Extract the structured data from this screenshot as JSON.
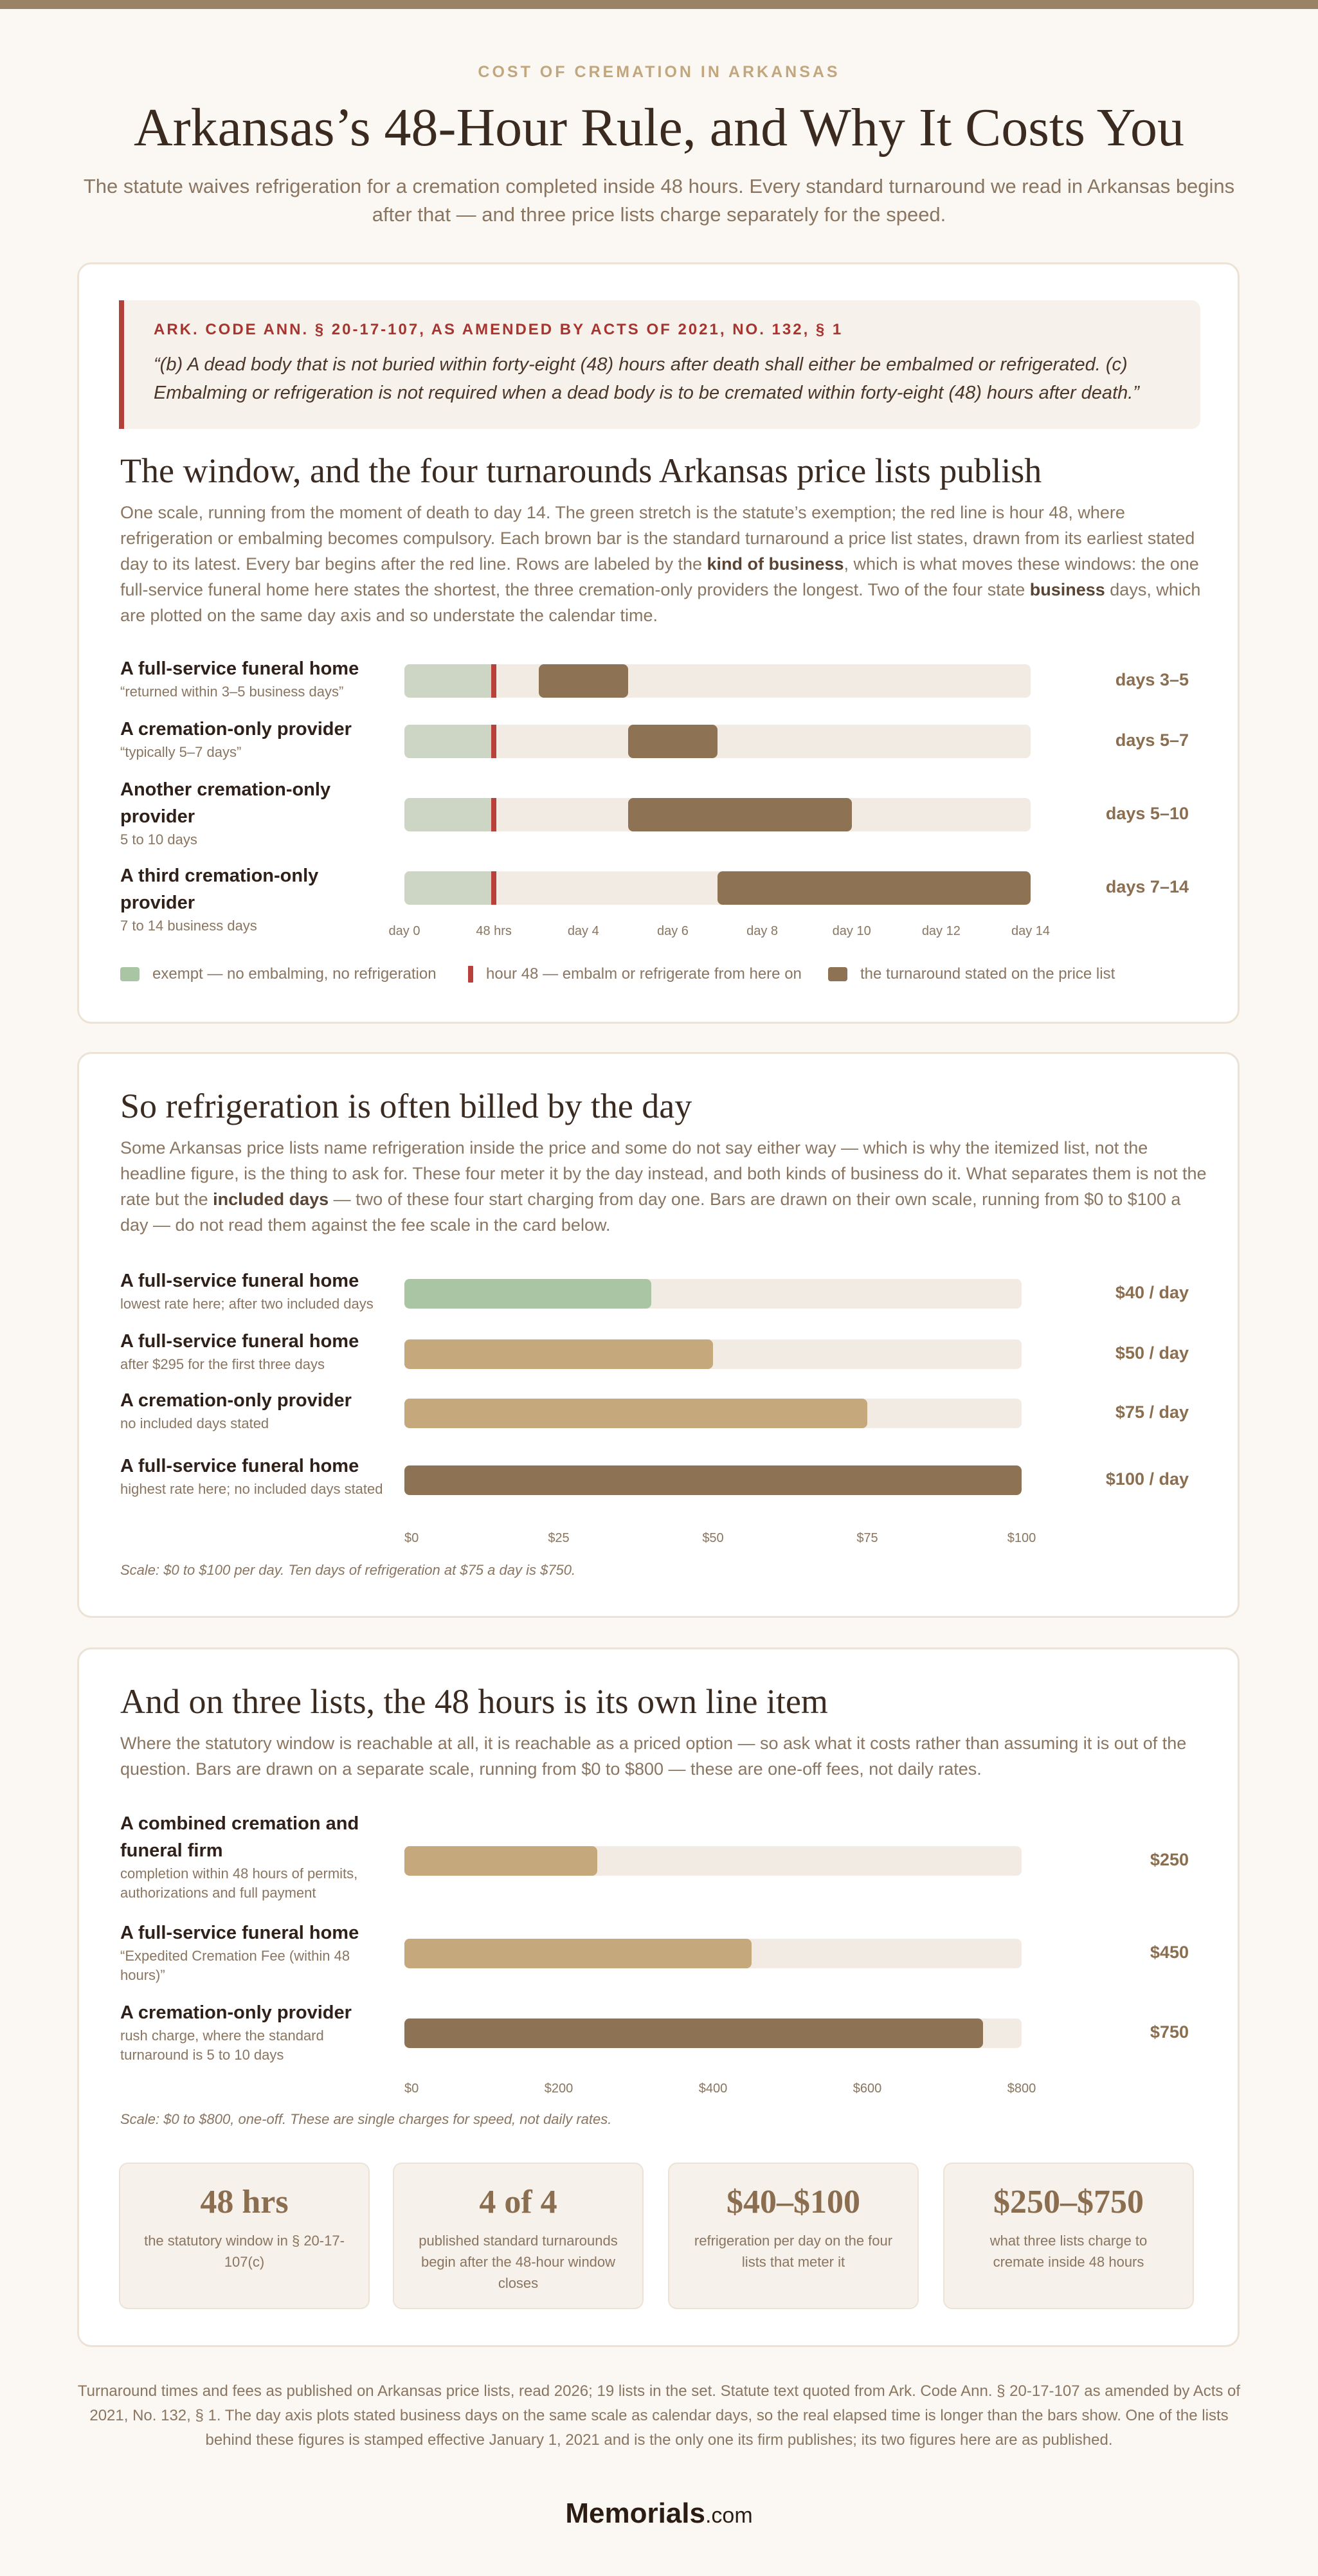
{
  "header": {
    "eyebrow": "COST OF CREMATION IN ARKANSAS",
    "title": "Arkansas’s 48-Hour Rule, and Why It Costs You",
    "subtitle": "The statute waives refrigeration for a cremation completed inside 48 hours. Every standard turnaround we read in Arkansas begins after that — and three price lists charge separately for the speed."
  },
  "statute": {
    "cite": "ARK. CODE ANN. § 20-17-107, AS AMENDED BY ACTS OF 2021, NO. 132, § 1",
    "text": "“(b) A dead body that is not buried within forty-eight (48) hours after death shall either be embalmed or refrigerated. (c) Embalming or refrigeration is not required when a dead body is to be cremated within forty-eight (48) hours after death.”"
  },
  "section1": {
    "heading": "The window, and the four turnarounds Arkansas price lists publish",
    "body_html": "One scale, running from the moment of death to day 14. The green stretch is the statute’s exemption; the red line is hour 48, where refrigeration or embalming becomes compulsory. Each brown bar is the standard turnaround a price list states, drawn from its earliest stated day to its latest. Every bar begins after the red line. Rows are labeled by the <b>kind of business</b>, which is what moves these windows: the one full-service funeral home here states the shortest, the three cremation-only providers the longest. Two of the four state <b>business</b> days, which are plotted on the same day axis and so understate the calendar time."
  },
  "legend": {
    "exempt": "exempt — no embalming, no refrigeration",
    "hour48": "hour 48 — embalm or refrigerate from here on",
    "turnaround": "the turnaround stated on the price list"
  },
  "section2": {
    "heading": "So refrigeration is often billed by the day",
    "body_html": "Some Arkansas price lists name refrigeration inside the price and some do not say either way — which is why the itemized list, not the headline figure, is the thing to ask for. These four meter it by the day instead, and both kinds of business do it. What separates them is not the rate but the <b>included days</b> — two of these four start charging from day one. Bars are drawn on their own scale, running from $0 to $100 a day — do not read them against the fee scale in the card below.",
    "note": "Scale: $0 to $100 per day. Ten days of refrigeration at $75 a day is $750."
  },
  "section3": {
    "heading": "And on three lists, the 48 hours is its own line item",
    "body": "Where the statutory window is reachable at all, it is reachable as a priced option — so ask what it costs rather than assuming it is out of the question. Bars are drawn on a separate scale, running from $0 to $800 — these are one-off fees, not daily rates.",
    "note": "Scale: $0 to $800, one-off. These are single charges for speed, not daily rates."
  },
  "stats": [
    {
      "big": "48 hrs",
      "label": "the statutory window in § 20-17-107(c)"
    },
    {
      "big": "4 of 4",
      "label": "published standard turnarounds begin after the 48-hour window closes"
    },
    {
      "big": "$40–$100",
      "label": "refrigeration per day on the four lists that meter it"
    },
    {
      "big": "$250–$750",
      "label": "what three lists charge to cremate inside 48 hours"
    }
  ],
  "footer": "Turnaround times and fees as published on Arkansas price lists, read 2026; 19 lists in the set. Statute text quoted from Ark. Code Ann. § 20-17-107 as amended by Acts of 2021, No. 132, § 1. The day axis plots stated business days on the same scale as calendar days, so the real elapsed time is longer than the bars show. One of the lists behind these figures is stamped effective January 1, 2021 and is the only one its firm publishes; its two figures here are as published.",
  "brand": {
    "name": "Memorials",
    "suffix": ".com"
  },
  "colors": {
    "exempt": "#cdd5c4",
    "hour48": "#b8423b",
    "turnaround": "#8e7254",
    "track": "#f1ebe4",
    "rate_low": "#a9c5a3",
    "rate_mid": "#c6a87d",
    "rate_high": "#8e7254"
  },
  "chart_data": [
    {
      "type": "bar",
      "orientation": "horizontal-range",
      "xlim": [
        0,
        14
      ],
      "x_ticks": [
        "day 0",
        "48 hrs",
        "day 4",
        "day 6",
        "day 8",
        "day 10",
        "day 12",
        "day 14"
      ],
      "exempt_range": [
        0,
        2
      ],
      "marker": 2,
      "series": [
        {
          "label": "A full-service funeral home",
          "sub": "“returned within 3–5 business days”",
          "start": 3,
          "end": 5,
          "value_label": "days 3–5"
        },
        {
          "label": "A cremation-only provider",
          "sub": "“typically 5–7 days”",
          "start": 5,
          "end": 7,
          "value_label": "days 5–7"
        },
        {
          "label": "Another cremation-only provider",
          "sub": "5 to 10 days",
          "start": 5,
          "end": 10,
          "value_label": "days 5–10"
        },
        {
          "label": "A third cremation-only provider",
          "sub": "7 to 14 business days",
          "start": 7,
          "end": 14,
          "value_label": "days 7–14"
        }
      ]
    },
    {
      "type": "bar",
      "orientation": "horizontal",
      "xlim": [
        0,
        100
      ],
      "x_ticks": [
        "$0",
        "$25",
        "$50",
        "$75",
        "$100"
      ],
      "series": [
        {
          "label": "A full-service funeral home",
          "sub": "lowest rate here; after two included days",
          "value": 40,
          "value_label": "$40 / day",
          "color": "rate_low"
        },
        {
          "label": "A full-service funeral home",
          "sub": "after $295 for the first three days",
          "value": 50,
          "value_label": "$50 / day",
          "color": "rate_mid"
        },
        {
          "label": "A cremation-only provider",
          "sub": "no included days stated",
          "value": 75,
          "value_label": "$75 / day",
          "color": "rate_mid"
        },
        {
          "label": "A full-service funeral home",
          "sub": "highest rate here; no included days stated",
          "value": 100,
          "value_label": "$100 / day",
          "color": "rate_high"
        }
      ]
    },
    {
      "type": "bar",
      "orientation": "horizontal",
      "xlim": [
        0,
        800
      ],
      "x_ticks": [
        "$0",
        "$200",
        "$400",
        "$600",
        "$800"
      ],
      "series": [
        {
          "label": "A combined cremation and funeral firm",
          "sub": "completion within 48 hours of permits, authorizations and full payment",
          "value": 250,
          "value_label": "$250",
          "color": "rate_mid"
        },
        {
          "label": "A full-service funeral home",
          "sub": "“Expedited Cremation Fee (within 48 hours)”",
          "value": 450,
          "value_label": "$450",
          "color": "rate_mid"
        },
        {
          "label": "A cremation-only provider",
          "sub": "rush charge, where the standard turnaround is 5 to 10 days",
          "value": 750,
          "value_label": "$750",
          "color": "rate_high"
        }
      ]
    }
  ]
}
